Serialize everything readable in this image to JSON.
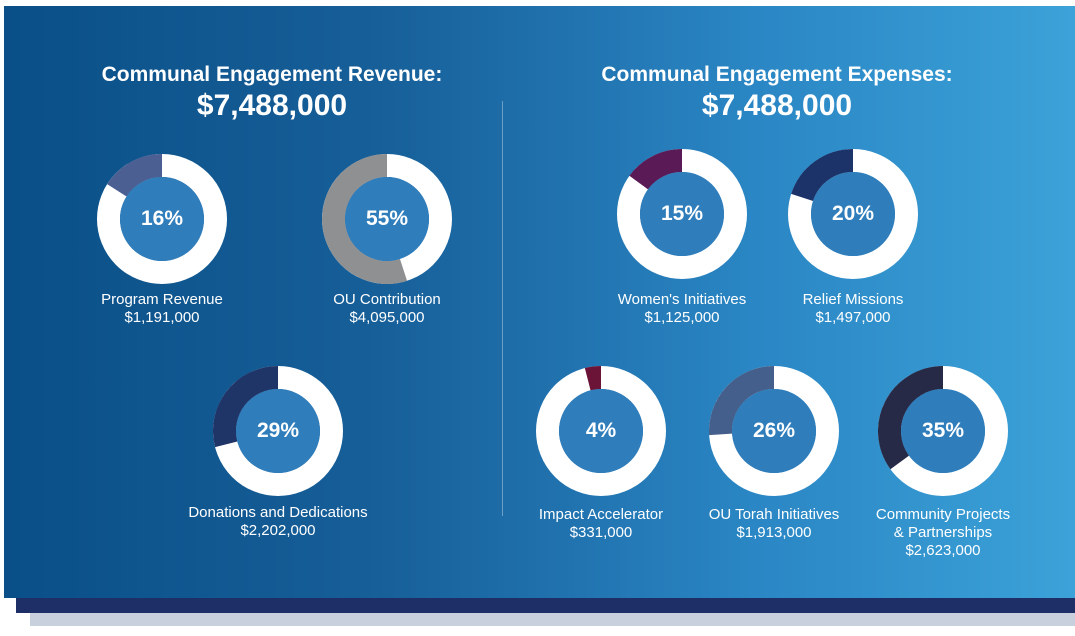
{
  "chart_data": [
    {
      "type": "pie",
      "title": "Communal Engagement Revenue:",
      "total": "$7,488,000",
      "slices": [
        {
          "label": "Program Revenue",
          "amount": "$1,191,000",
          "percent": 16,
          "percent_label": "16%",
          "color": "#4b5f92"
        },
        {
          "label": "OU Contribution",
          "amount": "$4,095,000",
          "percent": 55,
          "percent_label": "55%",
          "color": "#8f9092"
        },
        {
          "label": "Donations and Dedications",
          "amount": "$2,202,000",
          "percent": 29,
          "percent_label": "29%",
          "color": "#1f3467"
        }
      ]
    },
    {
      "type": "pie",
      "title": "Communal Engagement Expenses:",
      "total": "$7,488,000",
      "slices": [
        {
          "label": "Women's Initiatives",
          "amount": "$1,125,000",
          "percent": 15,
          "percent_label": "15%",
          "color": "#5a1a55"
        },
        {
          "label": "Relief Missions",
          "amount": "$1,497,000",
          "percent": 20,
          "percent_label": "20%",
          "color": "#1c336a"
        },
        {
          "label": "Impact Accelerator",
          "amount": "$331,000",
          "percent": 4,
          "percent_label": "4%",
          "color": "#6b1438"
        },
        {
          "label": "OU Torah Initiatives",
          "amount": "$1,913,000",
          "percent": 26,
          "percent_label": "26%",
          "color": "#445f8c"
        },
        {
          "label_lines": [
            "Community Projects",
            "& Partnerships"
          ],
          "amount": "$2,623,000",
          "percent": 35,
          "percent_label": "35%",
          "color": "#262a47"
        }
      ]
    }
  ],
  "colors": {
    "ring_base": "#ffffff",
    "inner_fill": "#2f7dbb"
  }
}
